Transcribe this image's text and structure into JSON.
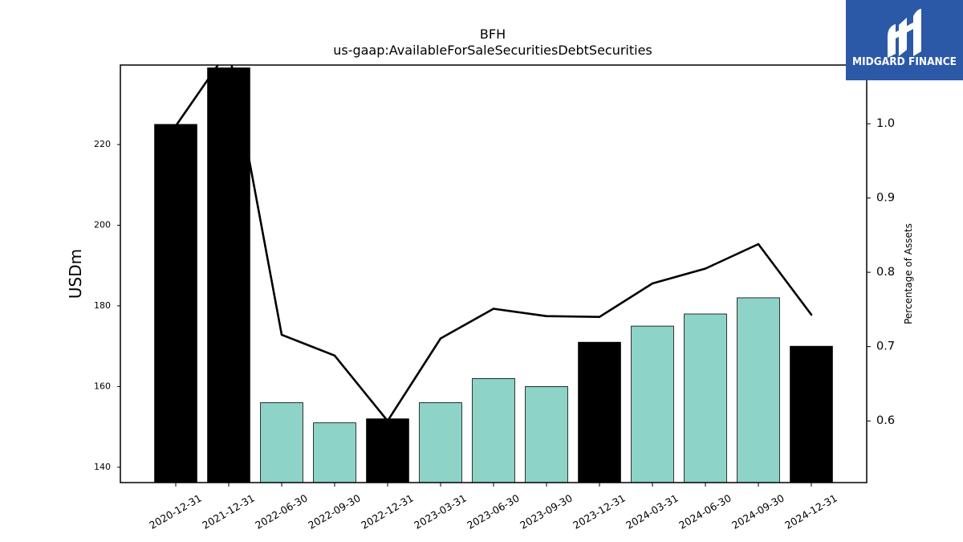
{
  "logo": {
    "text": "MIDGARD FINANCE",
    "background": "#2c58a8",
    "icon": "midgard-logo-icon"
  },
  "chart_data": {
    "type": "bar",
    "title": "BFH",
    "subtitle": "us-gaap:AvailableForSaleSecuritiesDebtSecurities",
    "ylabel": "USDm",
    "ylabel_right": "Percentage of Assets",
    "categories": [
      "2020-12-31",
      "2021-12-31",
      "2022-06-30",
      "2022-09-30",
      "2022-12-31",
      "2023-03-31",
      "2023-06-30",
      "2023-09-30",
      "2023-12-31",
      "2024-03-31",
      "2024-06-30",
      "2024-09-30",
      "2024-12-31"
    ],
    "ylim": [
      136.2,
      239.7
    ],
    "ylim_right": [
      0.517,
      1.079
    ],
    "yticks": [
      "140",
      "160",
      "180",
      "200",
      "220"
    ],
    "yticks_right": [
      "0.6",
      "0.7",
      "0.8",
      "0.9",
      "1.0"
    ],
    "grid": false,
    "series": [
      {
        "type": "bar",
        "axis": "left",
        "values": [
          225,
          239,
          156,
          151,
          152,
          156,
          162,
          160,
          171,
          175,
          178,
          182,
          170
        ],
        "colors": [
          "#000000",
          "#000000",
          "#8dd3c7",
          "#8dd3c7",
          "#000000",
          "#8dd3c7",
          "#8dd3c7",
          "#8dd3c7",
          "#000000",
          "#8dd3c7",
          "#8dd3c7",
          "#8dd3c7",
          "#000000"
        ]
      },
      {
        "type": "line",
        "axis": "right",
        "values": [
          0.997,
          1.1,
          0.716,
          0.688,
          0.6,
          0.711,
          0.751,
          0.741,
          0.74,
          0.785,
          0.805,
          0.838,
          0.743
        ],
        "color": "#000000"
      }
    ]
  }
}
